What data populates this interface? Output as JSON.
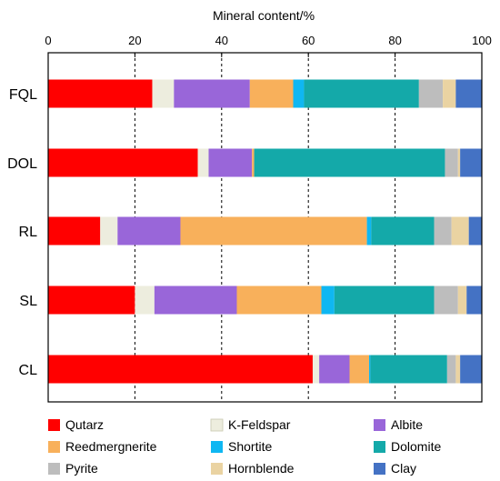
{
  "chart_data": {
    "type": "bar",
    "orientation": "horizontal",
    "stacked": true,
    "xlabel": "Mineral content/%",
    "xaxis_position": "top",
    "xlim": [
      0,
      100
    ],
    "xticks": [
      0,
      20,
      40,
      60,
      80,
      100
    ],
    "grid": "vertical dashed",
    "legend_position": "bottom",
    "categories": [
      "FQL",
      "DOL",
      "RL",
      "SL",
      "CL"
    ],
    "series": [
      {
        "name": "Qutarz",
        "color": "#ff0000",
        "values": [
          24.0,
          34.5,
          12.0,
          20.0,
          61.0
        ]
      },
      {
        "name": "K-Feldspar",
        "color": "#ededde",
        "values": [
          5.0,
          2.5,
          4.0,
          4.5,
          1.5
        ]
      },
      {
        "name": "Albite",
        "color": "#9966d9",
        "values": [
          17.5,
          10.0,
          14.5,
          19.0,
          7.0
        ]
      },
      {
        "name": "Reedmergnerite",
        "color": "#f8b05b",
        "values": [
          10.0,
          0.5,
          43.0,
          19.5,
          4.5
        ]
      },
      {
        "name": "Shortite",
        "color": "#0fb7f2",
        "values": [
          2.5,
          0.0,
          1.0,
          3.0,
          0.3
        ]
      },
      {
        "name": "Dolomite",
        "color": "#14a9a9",
        "values": [
          26.5,
          44.0,
          14.5,
          23.0,
          17.7
        ]
      },
      {
        "name": "Pyrite",
        "color": "#bdbdbd",
        "values": [
          5.5,
          3.0,
          4.0,
          5.5,
          2.0
        ]
      },
      {
        "name": "Hornblende",
        "color": "#ead3a2",
        "values": [
          3.0,
          0.5,
          4.0,
          2.0,
          1.0
        ]
      },
      {
        "name": "Clay",
        "color": "#4472c4",
        "values": [
          6.0,
          5.0,
          3.0,
          3.5,
          5.0
        ]
      }
    ]
  }
}
